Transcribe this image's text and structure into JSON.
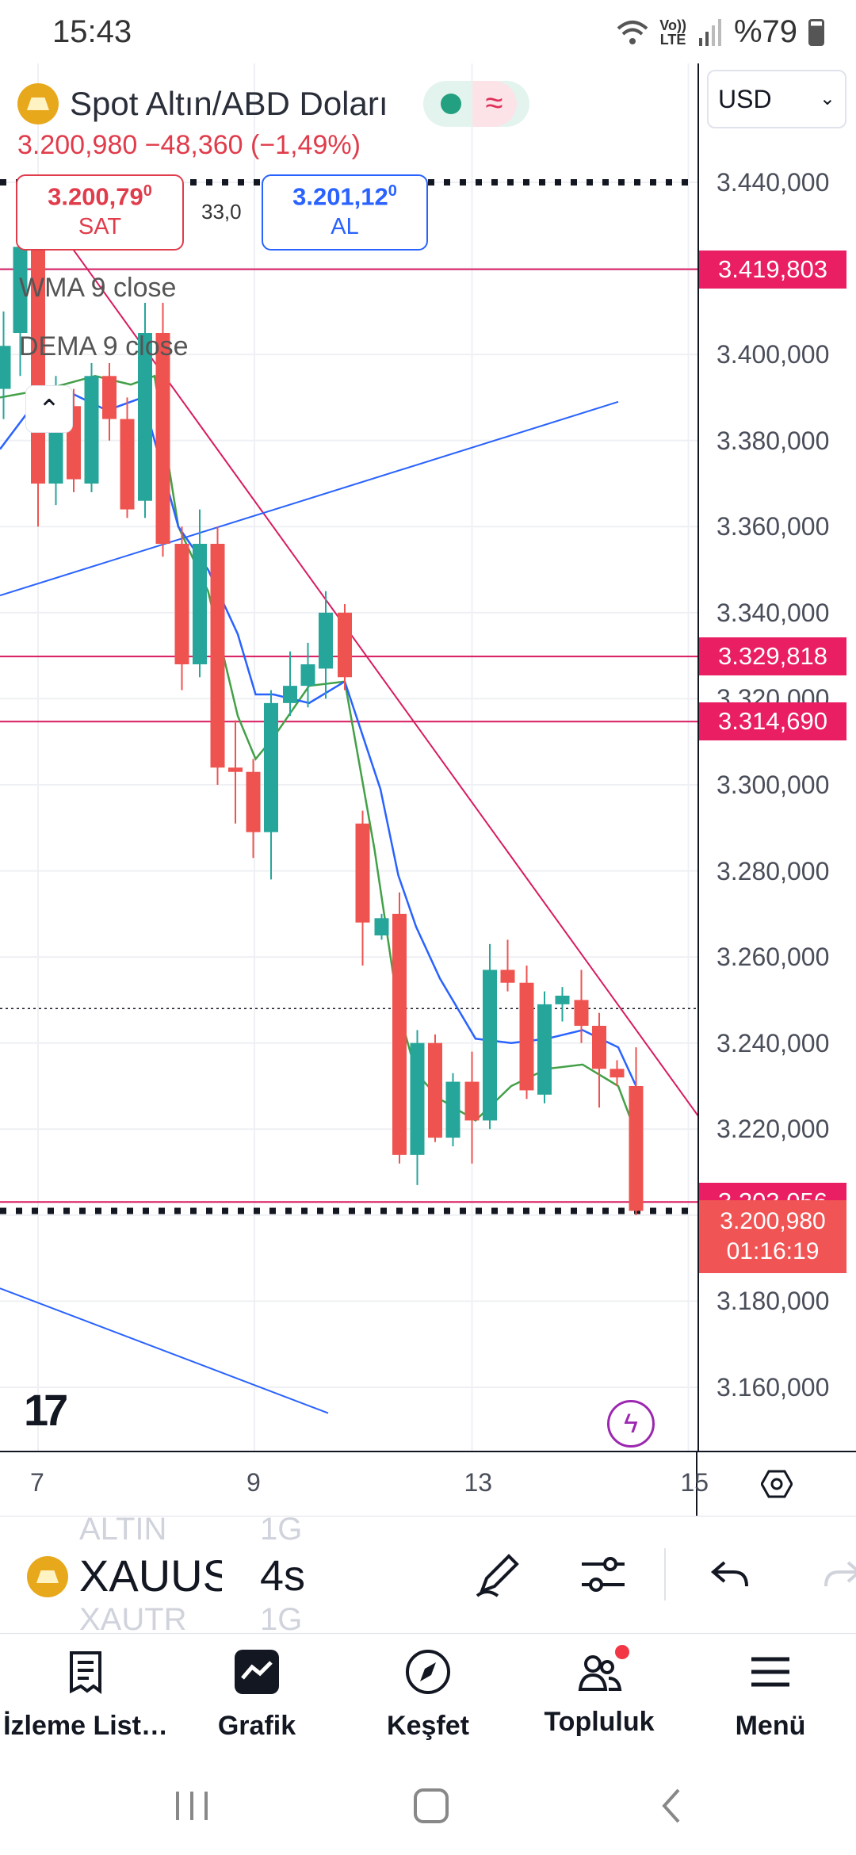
{
  "status_bar": {
    "time": "15:43",
    "network": "LTE",
    "volte": "Vo))",
    "battery": "%79"
  },
  "header": {
    "title": "Spot Altın/ABD Doları",
    "price_line": "3.200,980 −48,360 (−1,49%)"
  },
  "trade": {
    "sell_price": "3.200,79",
    "sell_price_sup": "0",
    "sell_label": "SAT",
    "spread": "33,0",
    "buy_price": "3.201,12",
    "buy_price_sup": "0",
    "buy_label": "AL"
  },
  "indicators": [
    {
      "label": "WMA 9 close"
    },
    {
      "label": "DEMA 9 close"
    }
  ],
  "currency": "USD",
  "chart_data": {
    "type": "candlestick",
    "price_ticks": [
      "3.440,000",
      "3.400,000",
      "3.380,000",
      "3.360,000",
      "3.340,000",
      "3.320,000",
      "3.300,000",
      "3.280,000",
      "3.260,000",
      "3.240,000",
      "3.220,000",
      "3.180,000",
      "3.160,000"
    ],
    "y_range": [
      3150,
      3450
    ],
    "date_ticks": [
      {
        "label": "7",
        "x": 32
      },
      {
        "label": "9",
        "x": 214
      },
      {
        "label": "13",
        "x": 397
      },
      {
        "label": "15",
        "x": 579
      }
    ],
    "tags": [
      {
        "value": "3.419,803",
        "price": 3419.803
      },
      {
        "value": "3.329,818",
        "price": 3329.818
      },
      {
        "value": "3.314,690",
        "price": 3314.69
      },
      {
        "value": "3.203,056",
        "price": 3203.056
      }
    ],
    "current": {
      "price_label": "3.200,980",
      "countdown": "01:16:19",
      "price": 3200.98
    },
    "candles": [
      {
        "x": 3,
        "o": 3392,
        "h": 3410,
        "l": 3385,
        "c": 3402
      },
      {
        "x": 17,
        "o": 3405,
        "h": 3430,
        "l": 3395,
        "c": 3425
      },
      {
        "x": 32,
        "o": 3425,
        "h": 3432,
        "l": 3360,
        "c": 3370
      },
      {
        "x": 47,
        "o": 3370,
        "h": 3395,
        "l": 3365,
        "c": 3388
      },
      {
        "x": 62,
        "o": 3388,
        "h": 3392,
        "l": 3368,
        "c": 3371
      },
      {
        "x": 77,
        "o": 3370,
        "h": 3398,
        "l": 3368,
        "c": 3395
      },
      {
        "x": 92,
        "o": 3395,
        "h": 3398,
        "l": 3380,
        "c": 3385
      },
      {
        "x": 107,
        "o": 3385,
        "h": 3390,
        "l": 3362,
        "c": 3364
      },
      {
        "x": 122,
        "o": 3366,
        "h": 3412,
        "l": 3362,
        "c": 3405
      },
      {
        "x": 137,
        "o": 3405,
        "h": 3412,
        "l": 3353,
        "c": 3356
      },
      {
        "x": 153,
        "o": 3356,
        "h": 3360,
        "l": 3322,
        "c": 3328
      },
      {
        "x": 168,
        "o": 3328,
        "h": 3364,
        "l": 3325,
        "c": 3356
      },
      {
        "x": 183,
        "o": 3356,
        "h": 3360,
        "l": 3300,
        "c": 3304
      },
      {
        "x": 198,
        "o": 3304,
        "h": 3315,
        "l": 3291,
        "c": 3303
      },
      {
        "x": 213,
        "o": 3303,
        "h": 3306,
        "l": 3283,
        "c": 3289
      },
      {
        "x": 228,
        "o": 3289,
        "h": 3322,
        "l": 3278,
        "c": 3319
      },
      {
        "x": 244,
        "o": 3319,
        "h": 3331,
        "l": 3316,
        "c": 3323
      },
      {
        "x": 259,
        "o": 3323,
        "h": 3333,
        "l": 3318,
        "c": 3328
      },
      {
        "x": 274,
        "o": 3327,
        "h": 3345,
        "l": 3320,
        "c": 3340
      },
      {
        "x": 290,
        "o": 3340,
        "h": 3342,
        "l": 3322,
        "c": 3325
      },
      {
        "x": 305,
        "o": 3291,
        "h": 3294,
        "l": 3258,
        "c": 3268
      },
      {
        "x": 321,
        "o": 3265,
        "h": 3270,
        "l": 3264,
        "c": 3269
      },
      {
        "x": 336,
        "o": 3270,
        "h": 3275,
        "l": 3212,
        "c": 3214
      },
      {
        "x": 351,
        "o": 3214,
        "h": 3243,
        "l": 3207,
        "c": 3240
      },
      {
        "x": 366,
        "o": 3240,
        "h": 3242,
        "l": 3217,
        "c": 3218
      },
      {
        "x": 381,
        "o": 3218,
        "h": 3233,
        "l": 3216,
        "c": 3231
      },
      {
        "x": 397,
        "o": 3231,
        "h": 3238,
        "l": 3212,
        "c": 3222
      },
      {
        "x": 412,
        "o": 3222,
        "h": 3263,
        "l": 3220,
        "c": 3257
      },
      {
        "x": 427,
        "o": 3257,
        "h": 3264,
        "l": 3252,
        "c": 3254
      },
      {
        "x": 443,
        "o": 3254,
        "h": 3258,
        "l": 3227,
        "c": 3229
      },
      {
        "x": 458,
        "o": 3228,
        "h": 3252,
        "l": 3226,
        "c": 3249
      },
      {
        "x": 473,
        "o": 3249,
        "h": 3253,
        "l": 3245,
        "c": 3251
      },
      {
        "x": 489,
        "o": 3250,
        "h": 3257,
        "l": 3240,
        "c": 3244
      },
      {
        "x": 504,
        "o": 3244,
        "h": 3247,
        "l": 3225,
        "c": 3234
      },
      {
        "x": 519,
        "o": 3234,
        "h": 3236,
        "l": 3230,
        "c": 3232
      },
      {
        "x": 535,
        "o": 3230,
        "h": 3239,
        "l": 3200,
        "c": 3201
      }
    ],
    "wma": [
      [
        0,
        3378
      ],
      [
        30,
        3389
      ],
      [
        60,
        3391
      ],
      [
        90,
        3387
      ],
      [
        120,
        3390
      ],
      [
        150,
        3360
      ],
      [
        175,
        3350
      ],
      [
        200,
        3335
      ],
      [
        215,
        3321
      ],
      [
        230,
        3321
      ],
      [
        260,
        3319
      ],
      [
        290,
        3324
      ],
      [
        320,
        3299
      ],
      [
        335,
        3279
      ],
      [
        350,
        3267
      ],
      [
        370,
        3255
      ],
      [
        400,
        3241
      ],
      [
        430,
        3240
      ],
      [
        460,
        3241
      ],
      [
        490,
        3243
      ],
      [
        520,
        3239
      ],
      [
        535,
        3230
      ]
    ],
    "dema": [
      [
        0,
        3390
      ],
      [
        40,
        3392
      ],
      [
        80,
        3395
      ],
      [
        110,
        3393
      ],
      [
        130,
        3395
      ],
      [
        150,
        3360
      ],
      [
        175,
        3345
      ],
      [
        200,
        3316
      ],
      [
        215,
        3306
      ],
      [
        230,
        3311
      ],
      [
        260,
        3323
      ],
      [
        290,
        3324
      ],
      [
        315,
        3285
      ],
      [
        335,
        3248
      ],
      [
        350,
        3233
      ],
      [
        370,
        3227
      ],
      [
        400,
        3222
      ],
      [
        430,
        3230
      ],
      [
        460,
        3234
      ],
      [
        490,
        3235
      ],
      [
        520,
        3230
      ],
      [
        535,
        3219
      ]
    ],
    "lines": [
      {
        "color": "#d81b60",
        "p1": [
          60,
          3425
        ],
        "p2": [
          590,
          3222
        ]
      },
      {
        "color": "#2962ff",
        "p1": [
          0,
          3344
        ],
        "p2": [
          520,
          3389
        ]
      },
      {
        "color": "#2962ff",
        "p1": [
          0,
          3183
        ],
        "p2": [
          276,
          3154
        ]
      }
    ],
    "hlines": [
      {
        "price": 3419.803,
        "color": "#d81b60",
        "style": "solid"
      },
      {
        "price": 3329.818,
        "color": "#d81b60",
        "style": "solid"
      },
      {
        "price": 3314.69,
        "color": "#d81b60",
        "style": "solid"
      },
      {
        "price": 3248,
        "color": "#131722",
        "style": "dotted"
      },
      {
        "price": 3203.056,
        "color": "#d81b60",
        "style": "solid"
      }
    ],
    "dotted_bold": [
      3440,
      3200.98
    ],
    "colors": {
      "up": "#26a69a",
      "down": "#ef5350",
      "wma": "#2962ff",
      "dema": "#43a047"
    }
  },
  "toolbar": {
    "symbol": "XAUUS",
    "symbol_prev": "ALTIN",
    "symbol_next": "XAUTR",
    "interval": "4s",
    "interval_prev": "1G",
    "interval_next": "1G"
  },
  "bottom_nav": [
    {
      "label": "İzleme List…",
      "icon": "watchlist-icon"
    },
    {
      "label": "Grafik",
      "icon": "chart-icon"
    },
    {
      "label": "Keşfet",
      "icon": "compass-icon"
    },
    {
      "label": "Topluluk",
      "icon": "community-icon"
    },
    {
      "label": "Menü",
      "icon": "menu-icon"
    }
  ]
}
